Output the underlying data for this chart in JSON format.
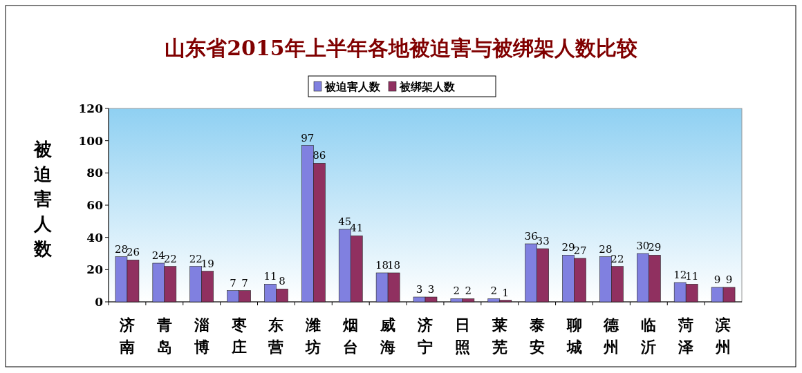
{
  "chart_data": {
    "type": "bar",
    "title": "山东省2015年上半年各地被迫害与被绑架人数比较",
    "ylabel": "被迫害人数",
    "categories": [
      "济南",
      "青岛",
      "淄博",
      "枣庄",
      "东营",
      "潍坊",
      "烟台",
      "威海",
      "济宁",
      "日照",
      "莱芜",
      "泰安",
      "聊城",
      "德州",
      "临沂",
      "菏泽",
      "滨州"
    ],
    "series": [
      {
        "name": "被迫害人数",
        "color": "#8080e0",
        "values": [
          28,
          24,
          22,
          7,
          11,
          97,
          45,
          18,
          3,
          2,
          2,
          36,
          29,
          28,
          30,
          12,
          9
        ]
      },
      {
        "name": "被绑架人数",
        "color": "#903060",
        "values": [
          26,
          22,
          19,
          7,
          8,
          86,
          41,
          18,
          3,
          2,
          1,
          33,
          27,
          22,
          29,
          11,
          9
        ]
      }
    ],
    "ylim": [
      0,
      120
    ],
    "yticks": [
      0,
      20,
      40,
      60,
      80,
      100,
      120
    ],
    "data_labels": true,
    "legend": "top",
    "grid": false
  }
}
